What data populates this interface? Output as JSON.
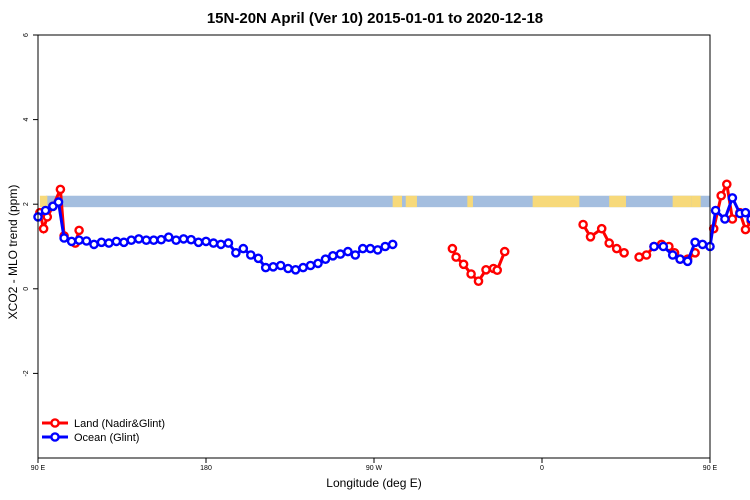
{
  "chart_data": {
    "type": "line",
    "title": "15N-20N April (Ver 10)   2015-01-01 to 2020-12-18",
    "xlabel": "Longitude (deg E)",
    "ylabel": "XCO2 - MLO trend (ppm)",
    "x_axis": {
      "range_deg_east": [
        90,
        450
      ],
      "ticks": [
        {
          "value": 90,
          "label": "90 E"
        },
        {
          "value": 180,
          "label": "180"
        },
        {
          "value": 270,
          "label": "90 W"
        },
        {
          "value": 360,
          "label": "0"
        },
        {
          "value": 450,
          "label": "90 E"
        },
        {
          "value": 540,
          "label": "180"
        }
      ]
    },
    "y_axis": {
      "range": [
        -4,
        6
      ],
      "ticks": [
        {
          "value": 6,
          "label": "6"
        },
        {
          "value": 4,
          "label": "4"
        },
        {
          "value": 2,
          "label": "2"
        },
        {
          "value": 0,
          "label": "0"
        },
        {
          "value": -2,
          "label": "-2"
        }
      ]
    },
    "grid": false,
    "legend_position": "bottom-left",
    "land_band": {
      "y_range": [
        1.93,
        2.2
      ],
      "ocean_color": "#a4bedf",
      "land_color": "#f7d97a",
      "land_spans": [
        [
          91,
          95
        ],
        [
          280,
          285
        ],
        [
          287,
          293
        ],
        [
          320,
          323
        ],
        [
          355,
          380
        ],
        [
          396,
          405
        ],
        [
          430,
          440
        ],
        [
          440,
          445
        ],
        [
          472,
          474
        ]
      ]
    },
    "series": [
      {
        "name": "Land (Nadir&Glint)",
        "color": "#ff0000",
        "segments": [
          [
            [
              91,
              1.8
            ],
            [
              93,
              1.42
            ],
            [
              95,
              1.7
            ],
            [
              98,
              1.95
            ],
            [
              102,
              2.35
            ],
            [
              104,
              1.25
            ],
            [
              110,
              1.08
            ],
            [
              112,
              1.38
            ]
          ],
          [
            [
              312,
              0.95
            ],
            [
              314,
              0.75
            ],
            [
              318,
              0.58
            ],
            [
              322,
              0.35
            ],
            [
              326,
              0.18
            ],
            [
              330,
              0.45
            ],
            [
              334,
              0.48
            ],
            [
              336,
              0.44
            ],
            [
              340,
              0.88
            ]
          ],
          [
            [
              382,
              1.52
            ],
            [
              386,
              1.23
            ],
            [
              392,
              1.42
            ],
            [
              396,
              1.08
            ],
            [
              400,
              0.95
            ],
            [
              404,
              0.85
            ]
          ],
          [
            [
              412,
              0.75
            ],
            [
              416,
              0.8
            ],
            [
              420,
              1.0
            ],
            [
              424,
              1.05
            ],
            [
              428,
              1.0
            ],
            [
              431,
              0.85
            ],
            [
              434,
              0.7
            ],
            [
              438,
              0.7
            ],
            [
              442,
              0.85
            ]
          ],
          [
            [
              452,
              1.42
            ],
            [
              456,
              2.2
            ],
            [
              459,
              2.47
            ],
            [
              462,
              1.65
            ],
            [
              466,
              1.8
            ],
            [
              469,
              1.4
            ],
            [
              472,
              1.6
            ],
            [
              475,
              1.9
            ],
            [
              478,
              2.35
            ],
            [
              482,
              1.25
            ],
            [
              484,
              1.2
            ],
            [
              486,
              1.0
            ],
            [
              488,
              1.35
            ]
          ]
        ]
      },
      {
        "name": "Ocean (Glint)",
        "color": "#0000ff",
        "segments": [
          [
            [
              90,
              1.7
            ],
            [
              94,
              1.85
            ],
            [
              98,
              1.95
            ],
            [
              101,
              2.05
            ],
            [
              104,
              1.2
            ],
            [
              108,
              1.12
            ],
            [
              112,
              1.15
            ],
            [
              116,
              1.13
            ],
            [
              120,
              1.05
            ],
            [
              124,
              1.1
            ],
            [
              128,
              1.08
            ],
            [
              132,
              1.12
            ],
            [
              136,
              1.1
            ],
            [
              140,
              1.15
            ],
            [
              144,
              1.18
            ],
            [
              148,
              1.15
            ],
            [
              152,
              1.15
            ],
            [
              156,
              1.16
            ],
            [
              160,
              1.22
            ],
            [
              164,
              1.15
            ],
            [
              168,
              1.18
            ],
            [
              172,
              1.16
            ],
            [
              176,
              1.1
            ],
            [
              180,
              1.12
            ],
            [
              184,
              1.08
            ],
            [
              188,
              1.05
            ],
            [
              192,
              1.08
            ],
            [
              196,
              0.85
            ],
            [
              200,
              0.95
            ],
            [
              204,
              0.8
            ],
            [
              208,
              0.72
            ],
            [
              212,
              0.5
            ],
            [
              216,
              0.52
            ],
            [
              220,
              0.55
            ],
            [
              224,
              0.48
            ],
            [
              228,
              0.45
            ],
            [
              232,
              0.5
            ],
            [
              236,
              0.55
            ],
            [
              240,
              0.6
            ],
            [
              244,
              0.7
            ],
            [
              248,
              0.78
            ],
            [
              252,
              0.82
            ],
            [
              256,
              0.88
            ],
            [
              260,
              0.8
            ],
            [
              264,
              0.95
            ],
            [
              268,
              0.95
            ],
            [
              272,
              0.92
            ],
            [
              276,
              1.0
            ],
            [
              280,
              1.05
            ]
          ],
          [
            [
              420,
              1.0
            ],
            [
              425,
              1.0
            ],
            [
              430,
              0.8
            ],
            [
              434,
              0.7
            ],
            [
              438,
              0.65
            ],
            [
              442,
              1.1
            ],
            [
              446,
              1.05
            ],
            [
              450,
              1.0
            ],
            [
              453,
              1.85
            ],
            [
              458,
              1.65
            ],
            [
              462,
              2.15
            ],
            [
              466,
              1.78
            ],
            [
              469,
              1.8
            ],
            [
              472,
              1.65
            ],
            [
              476,
              2.05
            ],
            [
              479,
              1.2
            ],
            [
              482,
              1.12
            ],
            [
              486,
              1.35
            ],
            [
              490,
              1.12
            ],
            [
              494,
              1.1
            ],
            [
              498,
              1.05
            ],
            [
              502,
              1.1
            ],
            [
              506,
              1.08
            ],
            [
              510,
              1.1
            ],
            [
              514,
              1.12
            ],
            [
              518,
              1.15
            ],
            [
              522,
              1.15
            ],
            [
              526,
              1.15
            ],
            [
              530,
              1.15
            ]
          ]
        ]
      }
    ]
  }
}
